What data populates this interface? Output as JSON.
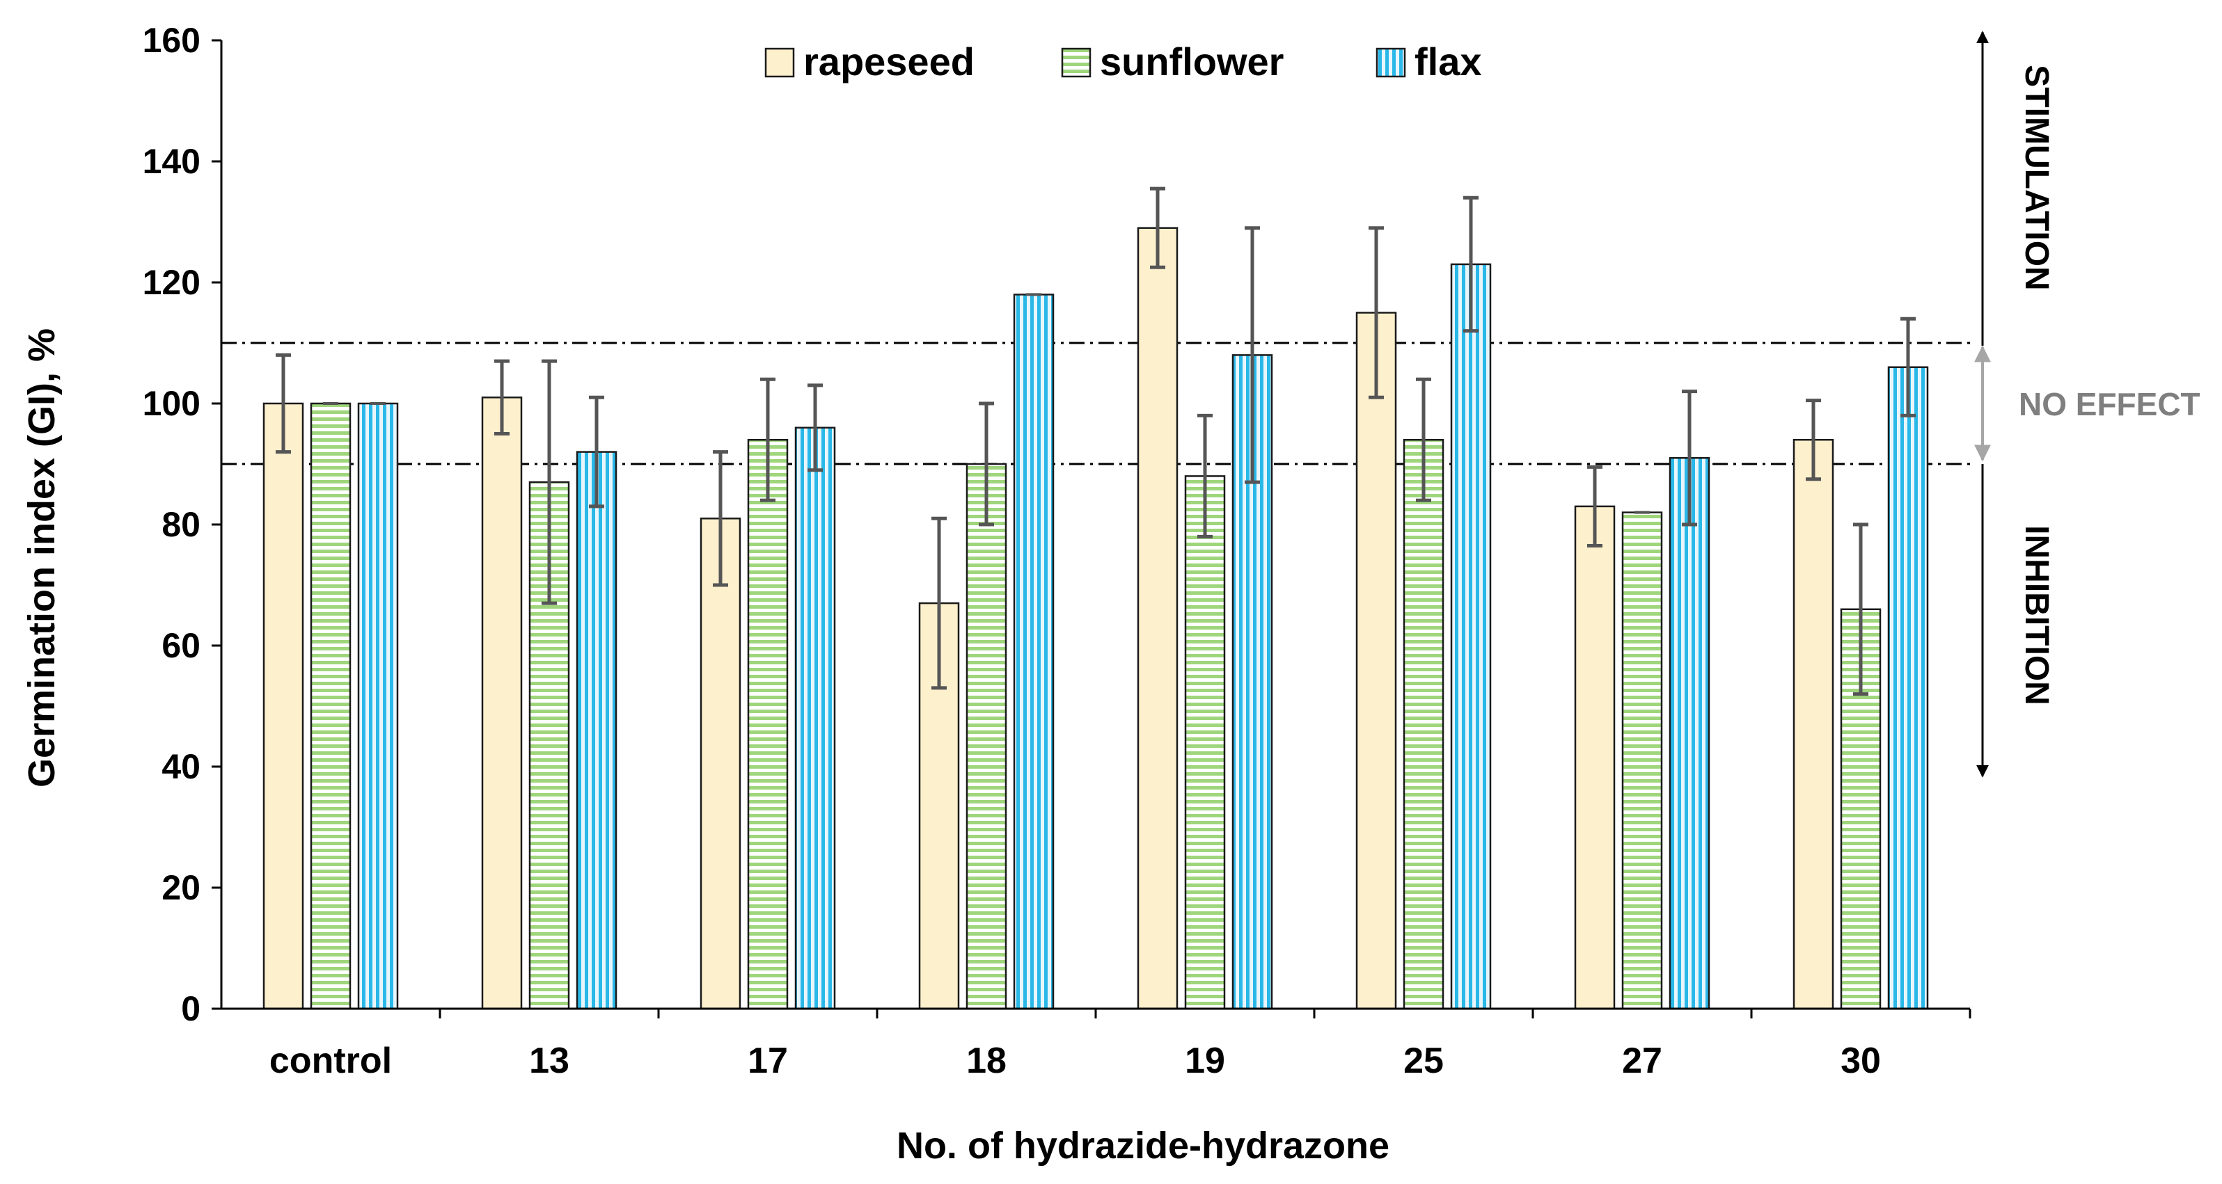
{
  "chart_data": {
    "type": "bar",
    "title": "",
    "xlabel": "No. of hydrazide-hydrazone",
    "ylabel": "Germination index (GI), %",
    "ylim": [
      0,
      160
    ],
    "yticks": [
      "0",
      "20",
      "40",
      "60",
      "80",
      "100",
      "120",
      "140",
      "160"
    ],
    "categories": [
      "control",
      "13",
      "17",
      "18",
      "19",
      "25",
      "27",
      "30"
    ],
    "series": [
      {
        "name": "rapeseed",
        "pattern": "solid",
        "values": [
          100,
          101,
          81,
          67,
          129,
          115,
          83,
          94
        ],
        "errors": [
          8,
          6,
          11,
          14,
          6.5,
          14,
          6.5,
          6.5
        ]
      },
      {
        "name": "sunflower",
        "pattern": "horizontal-stripes",
        "values": [
          100,
          87,
          94,
          90,
          88,
          94,
          82,
          66
        ],
        "errors": [
          0,
          20,
          10,
          10,
          10,
          10,
          0,
          14
        ]
      },
      {
        "name": "flax",
        "pattern": "vertical-stripes",
        "values": [
          100,
          92,
          96,
          118,
          108,
          123,
          91,
          106
        ],
        "errors": [
          0,
          9,
          7,
          0,
          21,
          11,
          11,
          8
        ]
      }
    ],
    "reference_lines": [
      90,
      110
    ],
    "legend_position": "top-center",
    "regions": [
      {
        "label": "STIMULATION",
        "from": 110,
        "to": 160
      },
      {
        "label": "NO EFFECT",
        "from": 90,
        "to": 110
      },
      {
        "label": "INHIBITION",
        "from": 40,
        "to": 90
      }
    ]
  },
  "colors": {
    "rapeseed_fill": "#fdf0cd",
    "sunflower_stripe": "#9fd67c",
    "flax_stripe": "#2ab8e8",
    "flax_bg": "#e8f6fc",
    "bar_outline": "#1a1a1a",
    "error_bar": "#555555",
    "no_effect_arrow": "#a6a6a6",
    "no_effect_text": "#7f7f7f",
    "text": "#000000"
  }
}
